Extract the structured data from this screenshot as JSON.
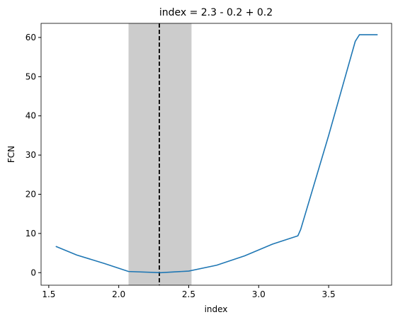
{
  "chart_data": {
    "type": "line",
    "title": "index = 2.3 - 0.2 + 0.2",
    "xlabel": "index",
    "ylabel": "FCN",
    "x": [
      1.55,
      1.7,
      1.9,
      2.07,
      2.3,
      2.5,
      2.7,
      2.9,
      3.1,
      3.28,
      3.3,
      3.5,
      3.69,
      3.72,
      3.85
    ],
    "series": [
      {
        "name": "FCN",
        "color": "#1f77b4",
        "values": [
          6.7,
          4.5,
          2.3,
          0.3,
          0.0,
          0.4,
          1.9,
          4.3,
          7.3,
          9.4,
          11,
          35,
          59,
          60.7,
          60.7
        ]
      }
    ],
    "band": [
      2.07,
      2.52
    ],
    "band_color": "#cccccc",
    "vline": 2.29,
    "xlim": [
      1.445,
      3.95
    ],
    "ylim": [
      -3.2,
      63.6
    ],
    "xticks": [
      1.5,
      {
        "value": 2.0,
        "label": "2.0"
      },
      2.5,
      {
        "value": 3.0,
        "label": "3.0"
      },
      3.5
    ],
    "yticks": [
      0,
      10,
      20,
      30,
      40,
      50,
      60
    ]
  }
}
